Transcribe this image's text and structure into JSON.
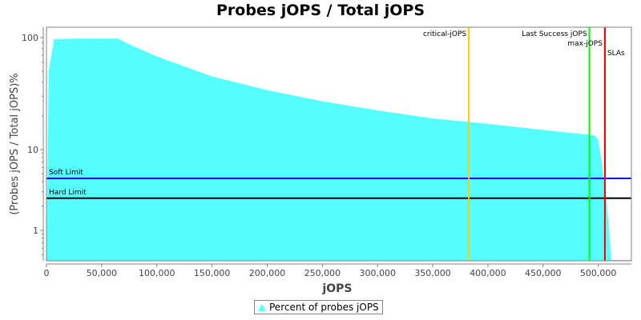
{
  "chart_data": {
    "type": "area",
    "title": "Probes jOPS / Total jOPS",
    "xlabel": "jOPS",
    "ylabel": "(Probes jOPS / Total jOPS)%",
    "yscale": "log",
    "xlim": [
      0,
      530000
    ],
    "ylim": [
      0.42,
      124
    ],
    "x_ticks": [
      0,
      50000,
      100000,
      150000,
      200000,
      250000,
      300000,
      350000,
      400000,
      450000,
      500000
    ],
    "x_tick_labels": [
      "0",
      "50,000",
      "100,000",
      "150,000",
      "200,000",
      "250,000",
      "300,000",
      "350,000",
      "400,000",
      "450,000",
      "500,000"
    ],
    "y_ticks": [
      1,
      10,
      100
    ],
    "y_tick_labels": [
      "1",
      "10",
      "100"
    ],
    "grid": false,
    "legend_position": "bottom",
    "series": [
      {
        "name": "Percent of probes jOPS",
        "color": "#55ffff",
        "x": [
          0,
          2000,
          7000,
          30000,
          65000,
          70000,
          100000,
          150000,
          200000,
          250000,
          300000,
          350000,
          400000,
          450000,
          497000,
          500000,
          503000,
          508000,
          512000,
          530000
        ],
        "y": [
          0.42,
          50,
          97,
          98,
          98,
          92,
          68,
          45,
          34,
          27,
          22.4,
          19,
          17,
          15,
          13.4,
          12.2,
          7.4,
          2.0,
          0.43,
          0.43
        ]
      }
    ],
    "horizontal_markers": [
      {
        "label": "Soft Limit",
        "value": 4.4,
        "color": "#0000ff"
      },
      {
        "label": "Hard Limit",
        "value": 2.5,
        "color": "#000000"
      }
    ],
    "vertical_markers": [
      {
        "label": "critical-jOPS",
        "value": 382700,
        "color": "#ffcc00"
      },
      {
        "label": "Last Success jOPS",
        "value": 492000,
        "color": "#00ff00"
      },
      {
        "label": "max-jOPS",
        "value": 506000,
        "color": "#ff0000"
      },
      {
        "label": "SLAs",
        "value": 506000,
        "color": "#ff0000"
      }
    ]
  }
}
